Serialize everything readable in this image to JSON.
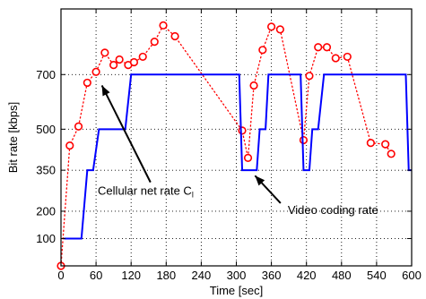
{
  "chart_data": {
    "type": "line",
    "xlabel": "Time [sec]",
    "ylabel": "Bit rate [kbps]",
    "xlim": [
      0,
      600
    ],
    "ylim": [
      0,
      940
    ],
    "x_ticks": [
      0,
      60,
      120,
      180,
      240,
      300,
      360,
      420,
      480,
      540,
      600
    ],
    "x_tick_labels": [
      "0",
      "60",
      "120",
      "180",
      "240",
      "300",
      "360",
      "420",
      "480",
      "540",
      "600"
    ],
    "y_ticks": [
      100,
      200,
      350,
      500,
      700
    ],
    "y_tick_labels": [
      "100",
      "200",
      "350",
      "500",
      "700"
    ],
    "grid": true,
    "series": [
      {
        "role": "cellular",
        "color": "#ff0000",
        "style": "dotted-with-circles",
        "points": [
          [
            0,
            0
          ],
          [
            15,
            440
          ],
          [
            30,
            510
          ],
          [
            45,
            670
          ],
          [
            60,
            710
          ],
          [
            75,
            780
          ],
          [
            90,
            735
          ],
          [
            100,
            755
          ],
          [
            115,
            735
          ],
          [
            125,
            745
          ],
          [
            140,
            765
          ],
          [
            160,
            820
          ],
          [
            175,
            880
          ],
          [
            195,
            840
          ],
          [
            310,
            495
          ],
          [
            320,
            395
          ],
          [
            330,
            660
          ],
          [
            345,
            790
          ],
          [
            360,
            875
          ],
          [
            375,
            865
          ],
          [
            415,
            460
          ],
          [
            425,
            695
          ],
          [
            440,
            800
          ],
          [
            455,
            800
          ],
          [
            470,
            760
          ],
          [
            490,
            765
          ],
          [
            530,
            450
          ],
          [
            555,
            445
          ],
          [
            565,
            410
          ]
        ]
      },
      {
        "role": "video",
        "color": "#0000ff",
        "style": "solid-step",
        "points": [
          [
            5,
            100
          ],
          [
            35,
            100
          ],
          [
            45,
            350
          ],
          [
            55,
            350
          ],
          [
            65,
            500
          ],
          [
            110,
            500
          ],
          [
            120,
            700
          ],
          [
            300,
            700
          ],
          [
            305,
            700
          ],
          [
            310,
            350
          ],
          [
            335,
            350
          ],
          [
            340,
            500
          ],
          [
            350,
            500
          ],
          [
            355,
            700
          ],
          [
            390,
            700
          ],
          [
            410,
            700
          ],
          [
            415,
            350
          ],
          [
            425,
            350
          ],
          [
            430,
            500
          ],
          [
            440,
            500
          ],
          [
            450,
            700
          ],
          [
            590,
            700
          ],
          [
            595,
            350
          ],
          [
            600,
            350
          ]
        ]
      }
    ],
    "annotations": [
      {
        "name": "cellular",
        "text": "Cellular net rate C",
        "subscript": "l",
        "text_at": [
          63,
          260
        ],
        "arrow_to": [
          70,
          660
        ]
      },
      {
        "name": "video",
        "text": "Video coding rate",
        "text_at": [
          388,
          190
        ],
        "arrow_to": [
          332,
          330
        ]
      }
    ]
  }
}
